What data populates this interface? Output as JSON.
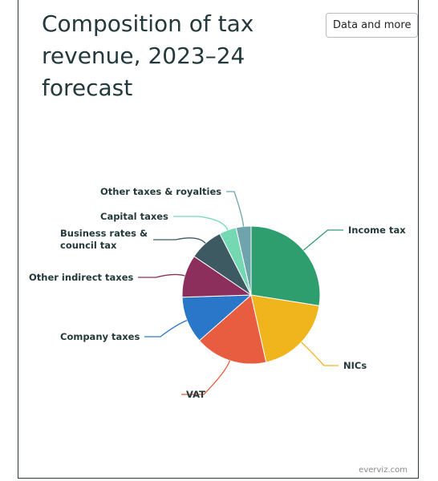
{
  "chart_data": {
    "type": "pie",
    "title": "Composition of tax revenue, 2023–24 forecast",
    "categories": [
      "Income tax",
      "NICs",
      "VAT",
      "Company taxes",
      "Other indirect taxes",
      "Business rates & council tax",
      "Capital taxes",
      "Other taxes & royalties"
    ],
    "values": [
      27.5,
      19,
      17,
      11,
      10,
      8,
      4,
      3.5
    ],
    "colors": [
      "#2e9e6e",
      "#f0b41c",
      "#e85c3f",
      "#2a77c9",
      "#8c2f5c",
      "#3d5a62",
      "#74d9b2",
      "#6fa4ad"
    ]
  },
  "button": "Data and more",
  "credit": "everviz.com"
}
